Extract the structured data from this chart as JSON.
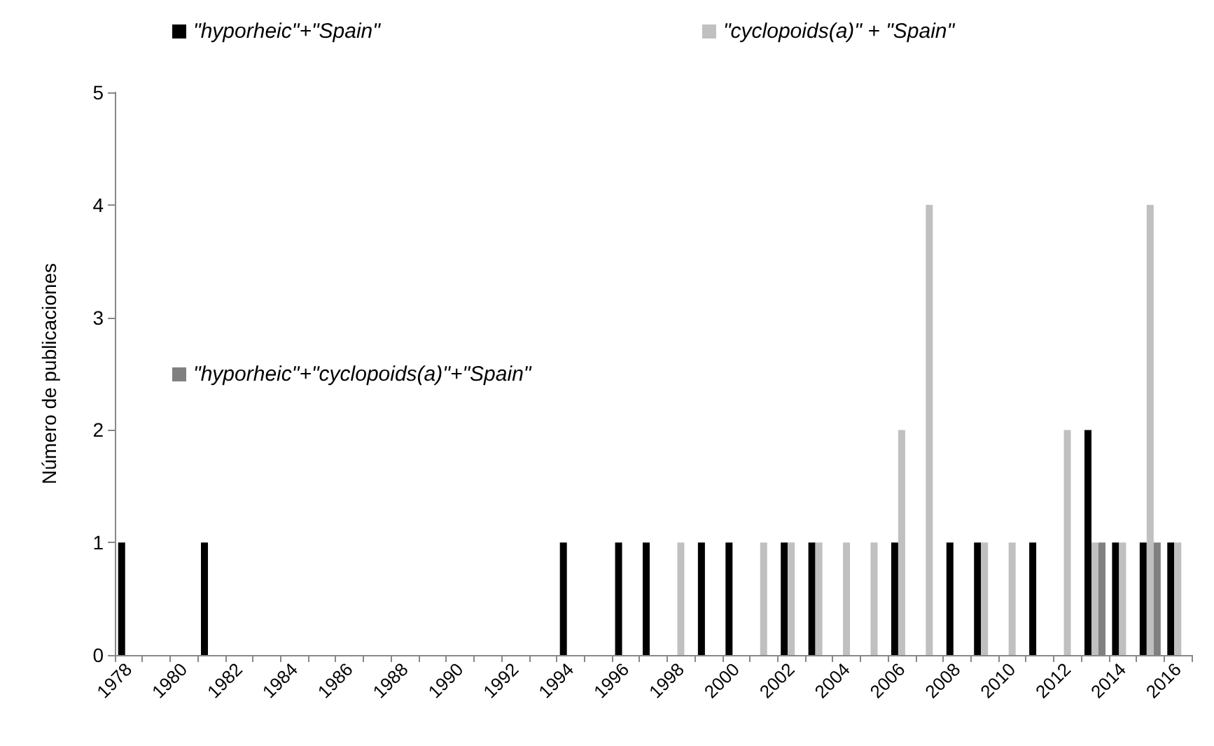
{
  "chart_data": {
    "type": "bar",
    "ylabel": "Número de publicaciones",
    "categories": [
      "1978",
      null,
      "1980",
      null,
      "1982",
      null,
      "1984",
      null,
      "1986",
      null,
      "1988",
      null,
      "1990",
      null,
      "1992",
      null,
      "1994",
      null,
      "1996",
      null,
      "1998",
      null,
      "2000",
      null,
      "2002",
      null,
      "2004",
      null,
      "2006",
      null,
      "2008",
      null,
      "2010",
      null,
      "2012",
      null,
      "2014",
      null,
      "2016"
    ],
    "series": [
      {
        "name": "\"hyporheic\"+\"Spain\"",
        "color": "#000000",
        "values": [
          1,
          0,
          0,
          1,
          0,
          0,
          0,
          0,
          0,
          0,
          0,
          0,
          0,
          0,
          0,
          0,
          1,
          0,
          1,
          1,
          0,
          1,
          1,
          0,
          1,
          1,
          0,
          0,
          1,
          0,
          1,
          1,
          0,
          1,
          0,
          2,
          1,
          1,
          1
        ]
      },
      {
        "name": "\"cyclopoids(a)\" + \"Spain\"",
        "color": "#c0c0c0",
        "values": [
          0,
          0,
          0,
          0,
          0,
          0,
          0,
          0,
          0,
          0,
          0,
          0,
          0,
          0,
          0,
          0,
          0,
          0,
          0,
          0,
          1,
          0,
          0,
          1,
          1,
          1,
          1,
          1,
          2,
          4,
          0,
          1,
          1,
          0,
          2,
          1,
          1,
          4,
          1
        ]
      },
      {
        "name": "\"hyporheic\"+\"cyclopoids(a)\"+\"Spain\"",
        "color": "#808080",
        "values": [
          0,
          0,
          0,
          0,
          0,
          0,
          0,
          0,
          0,
          0,
          0,
          0,
          0,
          0,
          0,
          0,
          0,
          0,
          0,
          0,
          0,
          0,
          0,
          0,
          0,
          0,
          0,
          0,
          0,
          0,
          0,
          0,
          0,
          0,
          0,
          1,
          0,
          1,
          0
        ]
      }
    ],
    "ylim": [
      0,
      5
    ],
    "yticks": [
      0,
      1,
      2,
      3,
      4,
      5
    ],
    "grid": false,
    "legend": "top left"
  }
}
